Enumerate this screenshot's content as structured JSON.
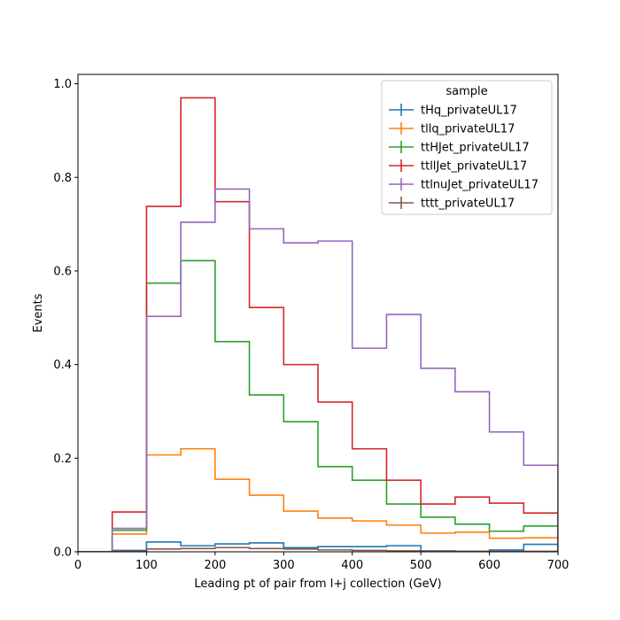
{
  "chart_data": {
    "type": "histogram-step",
    "title": "",
    "xlabel": "Leading pt of pair from l+j collection (GeV)",
    "ylabel": "Events",
    "xlim": [
      0,
      700
    ],
    "ylim": [
      0,
      1.02
    ],
    "xticks": [
      0,
      100,
      200,
      300,
      400,
      500,
      600,
      700
    ],
    "yticks": [
      0.0,
      0.2,
      0.4,
      0.6,
      0.8,
      1.0
    ],
    "grid": false,
    "legend": {
      "title": "sample",
      "placement": "upper-right"
    },
    "bin_edges": [
      0,
      50,
      100,
      150,
      200,
      250,
      300,
      350,
      400,
      450,
      500,
      550,
      600,
      650,
      700
    ],
    "series": [
      {
        "name": "tHq_privateUL17",
        "color": "#1f77b4",
        "values": [
          0.0,
          0.003,
          0.021,
          0.013,
          0.017,
          0.019,
          0.009,
          0.011,
          0.011,
          0.013,
          0.002,
          0.001,
          0.004,
          0.016
        ]
      },
      {
        "name": "tllq_privateUL17",
        "color": "#ff7f0e",
        "values": [
          0.0,
          0.038,
          0.207,
          0.22,
          0.155,
          0.121,
          0.087,
          0.072,
          0.066,
          0.057,
          0.04,
          0.042,
          0.029,
          0.03
        ]
      },
      {
        "name": "ttHJet_privateUL17",
        "color": "#2ca02c",
        "values": [
          0.0,
          0.046,
          0.574,
          0.622,
          0.449,
          0.335,
          0.278,
          0.182,
          0.153,
          0.102,
          0.074,
          0.059,
          0.044,
          0.055
        ]
      },
      {
        "name": "ttllJet_privateUL17",
        "color": "#d62728",
        "values": [
          0.0,
          0.085,
          0.738,
          0.97,
          0.748,
          0.522,
          0.4,
          0.32,
          0.22,
          0.153,
          0.102,
          0.117,
          0.104,
          0.083
        ]
      },
      {
        "name": "ttlnuJet_privateUL17",
        "color": "#9467bd",
        "values": [
          0.0,
          0.05,
          0.503,
          0.704,
          0.775,
          0.69,
          0.66,
          0.664,
          0.435,
          0.507,
          0.392,
          0.342,
          0.256,
          0.185
        ]
      },
      {
        "name": "tttt_privateUL17",
        "color": "#8c564b",
        "values": [
          0.0,
          0.001,
          0.006,
          0.007,
          0.009,
          0.007,
          0.006,
          0.004,
          0.003,
          0.002,
          0.001,
          0.001,
          0.001,
          0.001
        ]
      }
    ]
  }
}
